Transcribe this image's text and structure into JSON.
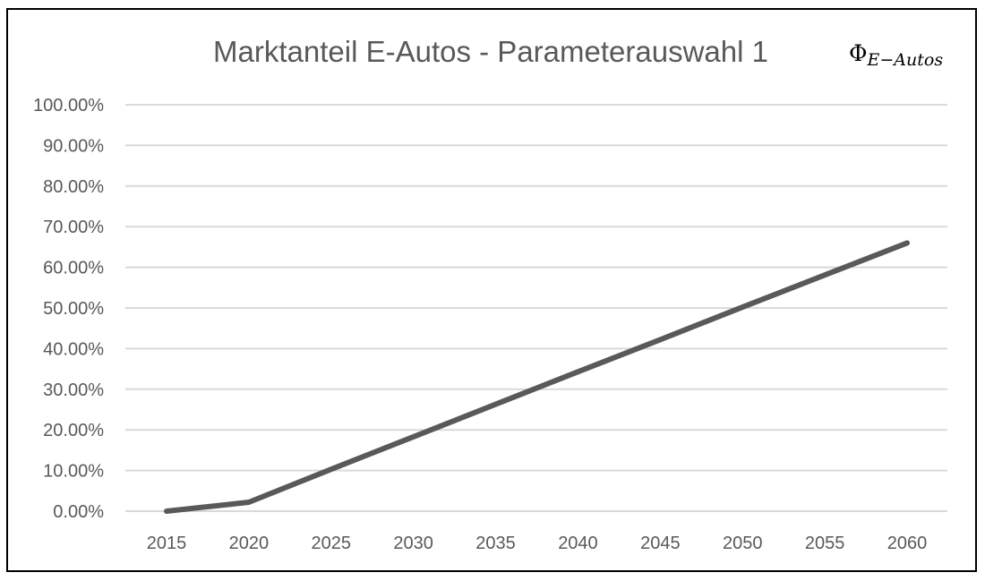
{
  "chart_data": {
    "type": "line",
    "title": "Marktanteil E-Autos - Parameterauswahl 1",
    "corner_label": {
      "main": "Φ",
      "sub": "E−Autos"
    },
    "x": [
      2015,
      2020,
      2025,
      2030,
      2035,
      2040,
      2045,
      2050,
      2055,
      2060
    ],
    "x_tick_labels": [
      "2015",
      "2020",
      "2025",
      "2030",
      "2035",
      "2040",
      "2045",
      "2050",
      "2055",
      "2060"
    ],
    "y_tick_labels": [
      "0.00%",
      "10.00%",
      "20.00%",
      "30.00%",
      "40.00%",
      "50.00%",
      "60.00%",
      "70.00%",
      "80.00%",
      "90.00%",
      "100.00%"
    ],
    "y_ticks": [
      0,
      10,
      20,
      30,
      40,
      50,
      60,
      70,
      80,
      90,
      100
    ],
    "ylim": [
      0,
      100
    ],
    "series": [
      {
        "values": [
          0.0,
          2.2,
          10.3,
          18.3,
          26.3,
          34.3,
          42.2,
          50.2,
          58.1,
          66.0
        ],
        "color": "#595959"
      }
    ],
    "grid": true,
    "legend": "none"
  }
}
